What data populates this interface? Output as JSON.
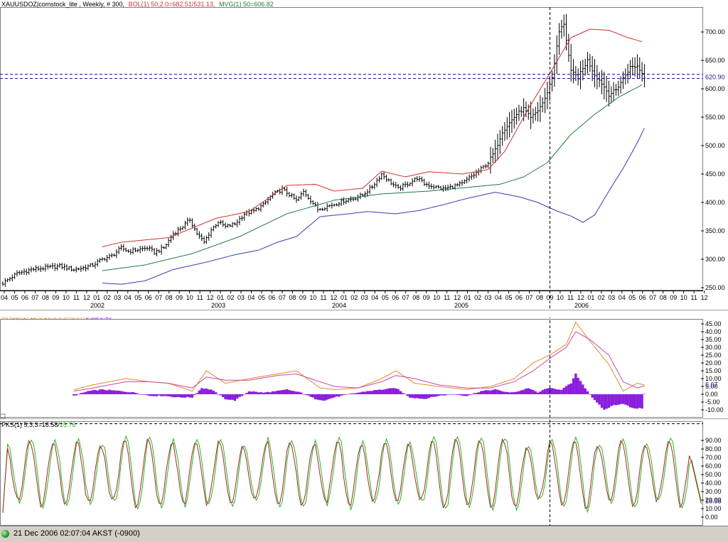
{
  "panels": {
    "price_title": "XAUUSDOZ|comstock_lite , Weekly, # 300,",
    "bol_label": "BOL(1) 50;2.0=682.51/531.13,",
    "mvg_label": "MVG(1) 50=606.82",
    "macd_label_a": "MACD(1) 12.0;26.0;9.0=6.07/",
    "macd_label_b": "5.58/0.49",
    "stoch_label_a": "PKS(1) 5;3;3=18.58/",
    "stoch_label_b": "15.76"
  },
  "status": {
    "datetime": "21 Dec 2006 02:07:04  AKST (-0900)"
  },
  "colors": {
    "price_bars": "#000000",
    "bol_upper": "#d03030",
    "bol_lower": "#3a3ab8",
    "mvg": "#1e7a3e",
    "macd": "#e08a28",
    "macd_signal": "#cc44aa",
    "macd_hist": "#8a1ee0",
    "stoch_k": "#2cb42c",
    "stoch_d": "#a8281e",
    "last_price": "#1a1a8a"
  },
  "chart_data": [
    {
      "type": "bar",
      "subtype": "ohlc",
      "title": "XAUUSDOZ|comstock_lite , Weekly, # 300,",
      "ylim": [
        250,
        730
      ],
      "yticks": [
        "250.00",
        "300.00",
        "350.00",
        "400.00",
        "450.00",
        "500.00",
        "550.00",
        "600.00",
        "650.00",
        "700.00"
      ],
      "x_month_labels": [
        "04",
        "05",
        "06",
        "07",
        "08",
        "09",
        "10",
        "11",
        "12",
        "01",
        "02",
        "03",
        "04",
        "05",
        "06",
        "07",
        "08",
        "09",
        "10",
        "11",
        "12",
        "01",
        "02",
        "03",
        "04",
        "05",
        "06",
        "07",
        "08",
        "09",
        "10",
        "11",
        "12",
        "01",
        "02",
        "03",
        "04",
        "05",
        "06",
        "07",
        "08",
        "09",
        "10",
        "11",
        "12",
        "01",
        "02",
        "03",
        "04",
        "05",
        "06",
        "07",
        "08",
        "09",
        "10",
        "11",
        "12",
        "01",
        "02",
        "03",
        "04",
        "05",
        "06",
        "07",
        "08",
        "09",
        "10",
        "11",
        "12"
      ],
      "x_year_labels": [
        "2002",
        "2003",
        "2004",
        "2005",
        "2006"
      ],
      "last_value_label": "620.90",
      "close_anchors": [
        [
          0,
          258
        ],
        [
          6,
          275
        ],
        [
          12,
          282
        ],
        [
          18,
          285
        ],
        [
          24,
          288
        ],
        [
          30,
          282
        ],
        [
          34,
          285
        ],
        [
          38,
          290
        ],
        [
          42,
          300
        ],
        [
          46,
          306
        ],
        [
          50,
          320
        ],
        [
          53,
          314
        ],
        [
          57,
          317
        ],
        [
          61,
          320
        ],
        [
          64,
          312
        ],
        [
          68,
          320
        ],
        [
          72,
          345
        ],
        [
          76,
          358
        ],
        [
          79,
          370
        ],
        [
          82,
          345
        ],
        [
          85,
          330
        ],
        [
          88,
          352
        ],
        [
          91,
          366
        ],
        [
          94,
          357
        ],
        [
          98,
          362
        ],
        [
          102,
          380
        ],
        [
          106,
          385
        ],
        [
          110,
          396
        ],
        [
          114,
          414
        ],
        [
          118,
          423
        ],
        [
          121,
          414
        ],
        [
          124,
          403
        ],
        [
          127,
          419
        ],
        [
          130,
          404
        ],
        [
          133,
          388
        ],
        [
          136,
          392
        ],
        [
          140,
          397
        ],
        [
          144,
          403
        ],
        [
          148,
          407
        ],
        [
          152,
          413
        ],
        [
          156,
          428
        ],
        [
          160,
          450
        ],
        [
          163,
          438
        ],
        [
          167,
          424
        ],
        [
          171,
          433
        ],
        [
          175,
          443
        ],
        [
          178,
          433
        ],
        [
          182,
          428
        ],
        [
          186,
          424
        ],
        [
          190,
          428
        ],
        [
          194,
          433
        ],
        [
          197,
          443
        ],
        [
          201,
          455
        ],
        [
          205,
          470
        ],
        [
          208,
          492
        ],
        [
          211,
          525
        ],
        [
          214,
          540
        ],
        [
          217,
          555
        ],
        [
          220,
          565
        ],
        [
          223,
          548
        ],
        [
          226,
          562
        ],
        [
          229,
          582
        ],
        [
          232,
          620
        ],
        [
          235,
          700
        ],
        [
          237,
          715
        ],
        [
          240,
          630
        ],
        [
          243,
          620
        ],
        [
          247,
          650
        ],
        [
          250,
          625
        ],
        [
          253,
          610
        ],
        [
          256,
          590
        ],
        [
          259,
          598
        ],
        [
          262,
          618
        ],
        [
          265,
          638
        ],
        [
          268,
          640
        ],
        [
          271,
          621
        ]
      ],
      "series": [
        {
          "name": "BOL(1) 50;2.0 upper",
          "anchors": [
            [
              42,
              322
            ],
            [
              50,
              330
            ],
            [
              70,
              338
            ],
            [
              80,
              355
            ],
            [
              90,
              372
            ],
            [
              104,
              384
            ],
            [
              120,
              430
            ],
            [
              132,
              432
            ],
            [
              140,
              420
            ],
            [
              152,
              425
            ],
            [
              160,
              455
            ],
            [
              170,
              445
            ],
            [
              180,
              454
            ],
            [
              194,
              450
            ],
            [
              205,
              458
            ],
            [
              212,
              490
            ],
            [
              222,
              565
            ],
            [
              230,
              620
            ],
            [
              240,
              690
            ],
            [
              248,
              705
            ],
            [
              256,
              703
            ],
            [
              264,
              690
            ],
            [
              270,
              683
            ]
          ]
        },
        {
          "name": "BOL(1) 50;2.0 lower",
          "anchors": [
            [
              42,
              258
            ],
            [
              50,
              256
            ],
            [
              60,
              262
            ],
            [
              72,
              282
            ],
            [
              86,
              295
            ],
            [
              98,
              308
            ],
            [
              108,
              316
            ],
            [
              116,
              330
            ],
            [
              124,
              340
            ],
            [
              134,
              375
            ],
            [
              146,
              380
            ],
            [
              154,
              384
            ],
            [
              166,
              380
            ],
            [
              176,
              386
            ],
            [
              186,
              396
            ],
            [
              196,
              407
            ],
            [
              208,
              418
            ],
            [
              218,
              410
            ],
            [
              226,
              400
            ],
            [
              234,
              385
            ],
            [
              240,
              376
            ],
            [
              245,
              365
            ],
            [
              250,
              378
            ],
            [
              256,
              420
            ],
            [
              262,
              460
            ],
            [
              268,
              505
            ],
            [
              271,
              531
            ]
          ]
        },
        {
          "name": "MVG(1) 50",
          "anchors": [
            [
              42,
              280
            ],
            [
              60,
              290
            ],
            [
              80,
              310
            ],
            [
              100,
              340
            ],
            [
              120,
              380
            ],
            [
              140,
              404
            ],
            [
              160,
              415
            ],
            [
              180,
              420
            ],
            [
              200,
              428
            ],
            [
              210,
              432
            ],
            [
              220,
              445
            ],
            [
              230,
              470
            ],
            [
              240,
              520
            ],
            [
              250,
              555
            ],
            [
              260,
              585
            ],
            [
              270,
              607
            ]
          ]
        }
      ]
    },
    {
      "type": "bar",
      "subtype": "macd",
      "title": "MACD(1) 12.0;26.0;9.0=6.07/5.58/0.49",
      "ylim": [
        -12,
        47
      ],
      "yticks": [
        "-10.00",
        "-5.00",
        "0.00",
        "5.00",
        "10.00",
        "15.00",
        "20.00",
        "25.00",
        "30.00",
        "35.00",
        "40.00",
        "45.00"
      ],
      "last_value_label": "6.07",
      "series": [
        {
          "name": "MACD",
          "anchors": [
            [
              30,
              3
            ],
            [
              38,
              6
            ],
            [
              52,
              10
            ],
            [
              62,
              8
            ],
            [
              70,
              7
            ],
            [
              80,
              2
            ],
            [
              86,
              15
            ],
            [
              94,
              7
            ],
            [
              104,
              10
            ],
            [
              116,
              13
            ],
            [
              124,
              15
            ],
            [
              134,
              4
            ],
            [
              140,
              3
            ],
            [
              150,
              4
            ],
            [
              160,
              10
            ],
            [
              166,
              15
            ],
            [
              174,
              7
            ],
            [
              184,
              5
            ],
            [
              196,
              3
            ],
            [
              206,
              5
            ],
            [
              216,
              10
            ],
            [
              224,
              20
            ],
            [
              232,
              26
            ],
            [
              238,
              32
            ],
            [
              242,
              46
            ],
            [
              248,
              34
            ],
            [
              256,
              19
            ],
            [
              262,
              2
            ],
            [
              268,
              7
            ],
            [
              271,
              6
            ]
          ]
        },
        {
          "name": "Signal",
          "anchors": [
            [
              30,
              2
            ],
            [
              38,
              4
            ],
            [
              52,
              8
            ],
            [
              62,
              8
            ],
            [
              70,
              7
            ],
            [
              80,
              4
            ],
            [
              86,
              11
            ],
            [
              94,
              9
            ],
            [
              104,
              9
            ],
            [
              116,
              12
            ],
            [
              124,
              13
            ],
            [
              134,
              8
            ],
            [
              140,
              5
            ],
            [
              150,
              4
            ],
            [
              160,
              8
            ],
            [
              166,
              12
            ],
            [
              174,
              10
            ],
            [
              184,
              6
            ],
            [
              196,
              4
            ],
            [
              206,
              4
            ],
            [
              216,
              8
            ],
            [
              224,
              15
            ],
            [
              232,
              24
            ],
            [
              238,
              30
            ],
            [
              242,
              40
            ],
            [
              248,
              35
            ],
            [
              256,
              25
            ],
            [
              262,
              8
            ],
            [
              268,
              4
            ],
            [
              271,
              5.5
            ]
          ]
        },
        {
          "name": "Histogram",
          "anchors": [
            [
              30,
              -1
            ],
            [
              36,
              2
            ],
            [
              42,
              3
            ],
            [
              50,
              2
            ],
            [
              56,
              1
            ],
            [
              62,
              -1
            ],
            [
              68,
              -1
            ],
            [
              74,
              -2
            ],
            [
              80,
              -2
            ],
            [
              84,
              4
            ],
            [
              88,
              3
            ],
            [
              94,
              -3
            ],
            [
              98,
              -4
            ],
            [
              104,
              2
            ],
            [
              110,
              1
            ],
            [
              116,
              2
            ],
            [
              120,
              3
            ],
            [
              126,
              1
            ],
            [
              132,
              -3
            ],
            [
              136,
              -4
            ],
            [
              140,
              -2
            ],
            [
              146,
              0
            ],
            [
              154,
              2
            ],
            [
              160,
              3
            ],
            [
              166,
              4
            ],
            [
              172,
              -2
            ],
            [
              178,
              -3
            ],
            [
              184,
              -1
            ],
            [
              190,
              0
            ],
            [
              196,
              -1
            ],
            [
              202,
              2
            ],
            [
              208,
              3
            ],
            [
              214,
              1
            ],
            [
              218,
              2
            ],
            [
              222,
              4
            ],
            [
              226,
              1
            ],
            [
              230,
              4
            ],
            [
              236,
              3
            ],
            [
              240,
              7
            ],
            [
              242,
              13
            ],
            [
              246,
              4
            ],
            [
              250,
              -4
            ],
            [
              254,
              -10
            ],
            [
              258,
              -7
            ],
            [
              262,
              -6
            ],
            [
              266,
              -9
            ],
            [
              270,
              -9
            ],
            [
              271,
              0.5
            ]
          ]
        }
      ]
    },
    {
      "type": "line",
      "subtype": "stochastic",
      "title": "PKS(1) 5;3;3=18.58/15.76",
      "ylim": [
        -3,
        97
      ],
      "yticks": [
        "0.00",
        "10.00",
        "20.00",
        "30.00",
        "40.00",
        "50.00",
        "60.00",
        "70.00",
        "80.00",
        "90.00"
      ],
      "last_value_label": "18.58",
      "series": [
        {
          "name": "%K",
          "pattern": "oscillating",
          "period_weeks": 10,
          "phase": 0.3,
          "low": 12,
          "high": 92,
          "last": 18.58
        },
        {
          "name": "%D",
          "pattern": "oscillating",
          "period_weeks": 10,
          "phase": 0.7,
          "low": 14,
          "high": 89,
          "last": 15.76
        }
      ]
    }
  ]
}
